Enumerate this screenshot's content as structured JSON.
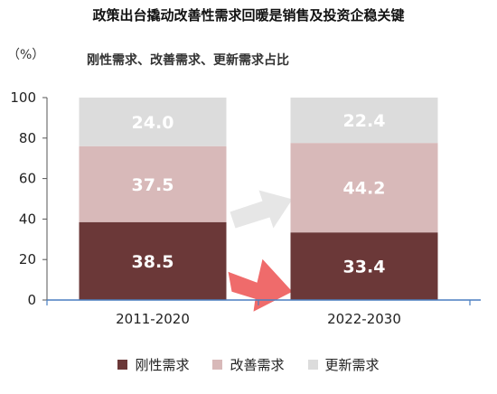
{
  "title": "政策出台撬动改善性需求回暖是销售及投资企稳关键",
  "unit_label": "（%）",
  "subtitle": "刚性需求、改善需求、更新需求占比",
  "legend": [
    {
      "label": "刚性需求",
      "color": "#6b3838"
    },
    {
      "label": "改善需求",
      "color": "#d8b9b9"
    },
    {
      "label": "更新需求",
      "color": "#dcdcdc"
    }
  ],
  "chart_data": {
    "type": "bar",
    "stacked": true,
    "categories": [
      "2011-2020",
      "2022-2030"
    ],
    "series": [
      {
        "name": "刚性需求",
        "values": [
          38.5,
          33.4
        ],
        "color": "#6b3838"
      },
      {
        "name": "改善需求",
        "values": [
          37.5,
          44.2
        ],
        "color": "#d8b9b9"
      },
      {
        "name": "更新需求",
        "values": [
          24.0,
          22.4
        ],
        "color": "#dcdcdc"
      }
    ],
    "ylim": [
      0,
      100
    ],
    "yticks": [
      0,
      20,
      40,
      60,
      80,
      100
    ],
    "grid": false,
    "legend_position": "bottom",
    "annotations": [
      {
        "type": "arrow",
        "description": "gray arrow from left bar toward right bar at 改善需求 level",
        "color": "#e6e6e6"
      },
      {
        "type": "arrow",
        "description": "red arrow from left bar toward right bar at 刚性需求 level",
        "color": "#ef6b6b"
      }
    ]
  }
}
